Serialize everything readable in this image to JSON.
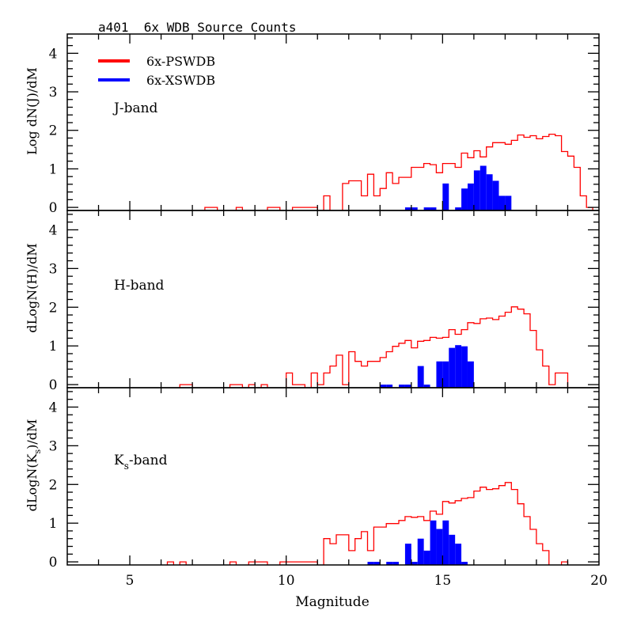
{
  "chart_data": {
    "type": "bar",
    "title": "a401  6x WDB Source Counts",
    "xlabel": "Magnitude",
    "xlim": [
      3,
      20
    ],
    "x_ticks": [
      5,
      10,
      15,
      20
    ],
    "x_tick_labels": [
      "5",
      "10",
      "15",
      "20"
    ],
    "bin_width": 0.2,
    "legend": {
      "placement": "top-left",
      "entries": [
        {
          "name": "6x-PSWDB",
          "color": "#ff0000"
        },
        {
          "name": "6x-XSWDB",
          "color": "#0000ff"
        }
      ]
    },
    "panels": [
      {
        "band_label": "J-band",
        "band_main": "J",
        "band_sub": "",
        "band_rest": "-band",
        "ylabel": "Log dN(J)/dM",
        "ylim": [
          -0.08,
          4.5
        ],
        "y_ticks": [
          0,
          1,
          2,
          3,
          4
        ],
        "y_tick_labels": [
          "0",
          "1",
          "2",
          "3",
          "4"
        ],
        "series": [
          {
            "name": "6x-PSWDB",
            "style": "step",
            "color": "#ff0000",
            "bins": [
              [
                7.4,
                0
              ],
              [
                7.6,
                0
              ],
              [
                8.4,
                0
              ],
              [
                9.4,
                0
              ],
              [
                9.6,
                0
              ],
              [
                10.2,
                0
              ],
              [
                10.4,
                0
              ],
              [
                10.6,
                0
              ],
              [
                10.8,
                0
              ],
              [
                11.2,
                0.3
              ],
              [
                11.8,
                0.62
              ],
              [
                12.0,
                0.69
              ],
              [
                12.2,
                0.69
              ],
              [
                12.4,
                0.3
              ],
              [
                12.6,
                0.86
              ],
              [
                12.8,
                0.3
              ],
              [
                13.0,
                0.49
              ],
              [
                13.2,
                0.9
              ],
              [
                13.4,
                0.62
              ],
              [
                13.6,
                0.78
              ],
              [
                13.8,
                0.78
              ],
              [
                14.0,
                1.04
              ],
              [
                14.2,
                1.04
              ],
              [
                14.4,
                1.14
              ],
              [
                14.6,
                1.11
              ],
              [
                14.8,
                0.9
              ],
              [
                15.0,
                1.14
              ],
              [
                15.2,
                1.14
              ],
              [
                15.4,
                1.04
              ],
              [
                15.6,
                1.41
              ],
              [
                15.8,
                1.29
              ],
              [
                16.0,
                1.47
              ],
              [
                16.2,
                1.31
              ],
              [
                16.4,
                1.57
              ],
              [
                16.6,
                1.68
              ],
              [
                16.8,
                1.68
              ],
              [
                17.0,
                1.64
              ],
              [
                17.2,
                1.74
              ],
              [
                17.4,
                1.88
              ],
              [
                17.6,
                1.82
              ],
              [
                17.8,
                1.86
              ],
              [
                18.0,
                1.78
              ],
              [
                18.2,
                1.84
              ],
              [
                18.4,
                1.9
              ],
              [
                18.6,
                1.86
              ],
              [
                18.8,
                1.45
              ],
              [
                19.0,
                1.33
              ],
              [
                19.2,
                1.04
              ],
              [
                19.4,
                0.3
              ],
              [
                19.6,
                0
              ]
            ]
          },
          {
            "name": "6x-XSWDB",
            "style": "filled",
            "color": "#0000ff",
            "bins": [
              [
                13.8,
                0
              ],
              [
                14.0,
                0
              ],
              [
                14.4,
                0
              ],
              [
                14.6,
                0
              ],
              [
                15.0,
                0.62
              ],
              [
                15.4,
                0
              ],
              [
                15.6,
                0.49
              ],
              [
                15.8,
                0.62
              ],
              [
                16.0,
                0.96
              ],
              [
                16.2,
                1.08
              ],
              [
                16.4,
                0.86
              ],
              [
                16.6,
                0.69
              ],
              [
                16.8,
                0.3
              ],
              [
                17.0,
                0.3
              ]
            ]
          }
        ]
      },
      {
        "band_label": "H-band",
        "band_main": "H",
        "band_sub": "",
        "band_rest": "-band",
        "ylabel": "dLogN(H)/dM",
        "ylim": [
          -0.08,
          4.5
        ],
        "y_ticks": [
          0,
          1,
          2,
          3,
          4
        ],
        "y_tick_labels": [
          "0",
          "1",
          "2",
          "3",
          "4"
        ],
        "series": [
          {
            "name": "6x-PSWDB",
            "style": "step",
            "color": "#ff0000",
            "bins": [
              [
                6.6,
                0
              ],
              [
                6.8,
                0
              ],
              [
                8.2,
                0
              ],
              [
                8.4,
                0
              ],
              [
                8.8,
                0
              ],
              [
                9.2,
                0
              ],
              [
                10.0,
                0.3
              ],
              [
                10.2,
                0
              ],
              [
                10.4,
                0
              ],
              [
                10.8,
                0.3
              ],
              [
                11.0,
                0
              ],
              [
                11.2,
                0.3
              ],
              [
                11.4,
                0.48
              ],
              [
                11.6,
                0.76
              ],
              [
                11.8,
                0
              ],
              [
                12.0,
                0.85
              ],
              [
                12.2,
                0.6
              ],
              [
                12.4,
                0.48
              ],
              [
                12.6,
                0.6
              ],
              [
                12.8,
                0.6
              ],
              [
                13.0,
                0.7
              ],
              [
                13.2,
                0.85
              ],
              [
                13.4,
                0.99
              ],
              [
                13.6,
                1.07
              ],
              [
                13.8,
                1.14
              ],
              [
                14.0,
                0.95
              ],
              [
                14.2,
                1.12
              ],
              [
                14.4,
                1.14
              ],
              [
                14.6,
                1.22
              ],
              [
                14.8,
                1.2
              ],
              [
                15.0,
                1.22
              ],
              [
                15.2,
                1.42
              ],
              [
                15.4,
                1.3
              ],
              [
                15.6,
                1.42
              ],
              [
                15.8,
                1.6
              ],
              [
                16.0,
                1.58
              ],
              [
                16.2,
                1.7
              ],
              [
                16.4,
                1.72
              ],
              [
                16.6,
                1.68
              ],
              [
                16.8,
                1.77
              ],
              [
                17.0,
                1.87
              ],
              [
                17.2,
                2.01
              ],
              [
                17.4,
                1.95
              ],
              [
                17.6,
                1.83
              ],
              [
                17.8,
                1.4
              ],
              [
                18.0,
                0.9
              ],
              [
                18.2,
                0.48
              ],
              [
                18.4,
                0
              ],
              [
                18.6,
                0.3
              ],
              [
                18.8,
                0.3
              ]
            ]
          },
          {
            "name": "6x-XSWDB",
            "style": "filled",
            "color": "#0000ff",
            "bins": [
              [
                13.0,
                0
              ],
              [
                13.2,
                0
              ],
              [
                13.6,
                0
              ],
              [
                13.8,
                0
              ],
              [
                14.2,
                0.48
              ],
              [
                14.4,
                0
              ],
              [
                14.8,
                0.6
              ],
              [
                15.0,
                0.6
              ],
              [
                15.2,
                0.95
              ],
              [
                15.4,
                1.02
              ],
              [
                15.6,
                0.99
              ],
              [
                15.8,
                0.6
              ]
            ]
          }
        ]
      },
      {
        "band_label": "Ks-band",
        "band_main": "K",
        "band_sub": "s",
        "band_rest": "-band",
        "ylabel": "dLogN(Ks)/dM",
        "ylabel_main": "dLogN(K",
        "ylabel_sub": "s",
        "ylabel_rest": ")/dM",
        "ylim": [
          -0.08,
          4.5
        ],
        "y_ticks": [
          0,
          1,
          2,
          3,
          4
        ],
        "y_tick_labels": [
          "0",
          "1",
          "2",
          "3",
          "4"
        ],
        "series": [
          {
            "name": "6x-PSWDB",
            "style": "step",
            "color": "#ff0000",
            "bins": [
              [
                6.2,
                0
              ],
              [
                6.6,
                0
              ],
              [
                8.2,
                0
              ],
              [
                8.8,
                0
              ],
              [
                9.0,
                0
              ],
              [
                9.2,
                0
              ],
              [
                9.8,
                0
              ],
              [
                10.0,
                0
              ],
              [
                10.2,
                0
              ],
              [
                10.4,
                0
              ],
              [
                10.6,
                0
              ],
              [
                10.8,
                0
              ],
              [
                11.2,
                0.6
              ],
              [
                11.4,
                0.47
              ],
              [
                11.6,
                0.7
              ],
              [
                11.8,
                0.7
              ],
              [
                12.0,
                0.29
              ],
              [
                12.2,
                0.6
              ],
              [
                12.4,
                0.78
              ],
              [
                12.6,
                0.29
              ],
              [
                12.8,
                0.9
              ],
              [
                13.0,
                0.9
              ],
              [
                13.2,
                0.99
              ],
              [
                13.4,
                0.99
              ],
              [
                13.6,
                1.07
              ],
              [
                13.8,
                1.17
              ],
              [
                14.0,
                1.15
              ],
              [
                14.2,
                1.17
              ],
              [
                14.4,
                1.07
              ],
              [
                14.6,
                1.31
              ],
              [
                14.8,
                1.23
              ],
              [
                15.0,
                1.56
              ],
              [
                15.2,
                1.52
              ],
              [
                15.4,
                1.58
              ],
              [
                15.6,
                1.64
              ],
              [
                15.8,
                1.66
              ],
              [
                16.0,
                1.83
              ],
              [
                16.2,
                1.93
              ],
              [
                16.4,
                1.87
              ],
              [
                16.6,
                1.89
              ],
              [
                16.8,
                1.97
              ],
              [
                17.0,
                2.05
              ],
              [
                17.2,
                1.87
              ],
              [
                17.4,
                1.5
              ],
              [
                17.6,
                1.17
              ],
              [
                17.8,
                0.84
              ],
              [
                18.0,
                0.47
              ],
              [
                18.2,
                0.29
              ],
              [
                18.8,
                0
              ]
            ]
          },
          {
            "name": "6x-XSWDB",
            "style": "filled",
            "color": "#0000ff",
            "bins": [
              [
                12.6,
                0
              ],
              [
                12.8,
                0
              ],
              [
                13.2,
                0
              ],
              [
                13.4,
                0
              ],
              [
                13.8,
                0.47
              ],
              [
                14.0,
                0
              ],
              [
                14.2,
                0.6
              ],
              [
                14.4,
                0.29
              ],
              [
                14.6,
                1.07
              ],
              [
                14.8,
                0.85
              ],
              [
                15.0,
                1.07
              ],
              [
                15.2,
                0.7
              ],
              [
                15.4,
                0.47
              ],
              [
                15.6,
                0
              ]
            ]
          }
        ]
      }
    ]
  }
}
